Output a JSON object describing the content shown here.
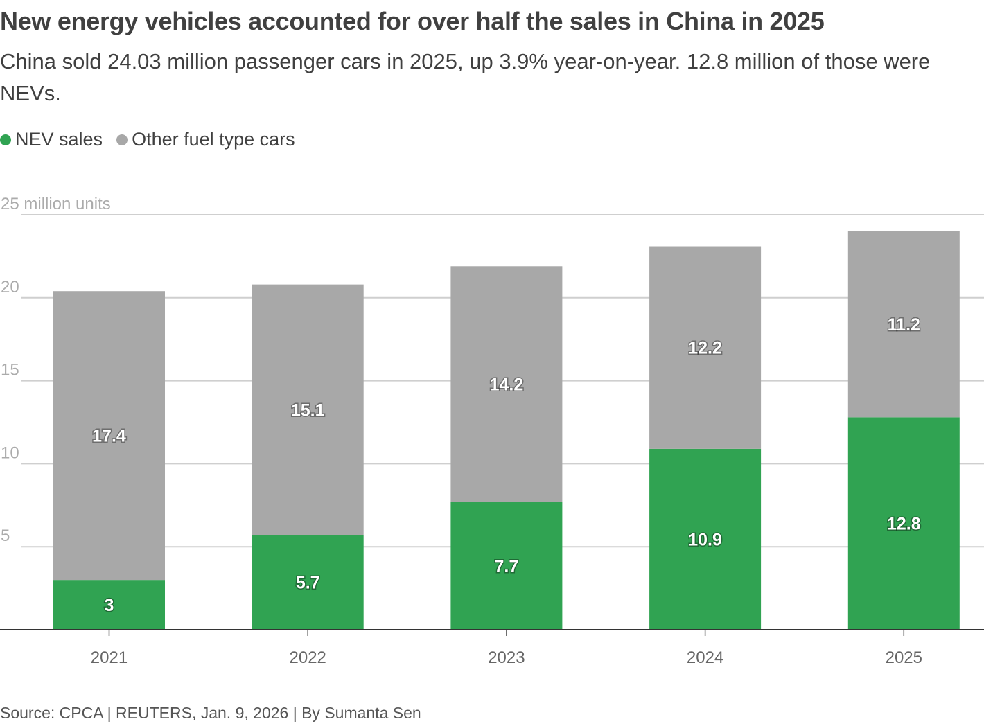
{
  "title": "New energy vehicles accounted for over half the sales in China in 2025",
  "subtitle": "China sold 24.03 million passenger cars in 2025, up 3.9% year-on-year. 12.8 million of those were NEVs.",
  "source": "Source: CPCA | REUTERS, Jan. 9, 2026 | By Sumanta Sen",
  "colors": {
    "nev": "#30a352",
    "other": "#a8a8a8",
    "grid": "#cfcfcf",
    "axis": "#333333"
  },
  "chart_data": {
    "type": "bar",
    "stacked": true,
    "categories": [
      "2021",
      "2022",
      "2023",
      "2024",
      "2025"
    ],
    "series": [
      {
        "name": "NEV sales",
        "values": [
          3,
          5.7,
          7.7,
          10.9,
          12.8
        ],
        "labels": [
          "3",
          "5.7",
          "7.7",
          "10.9",
          "12.8"
        ],
        "color": "#30a352"
      },
      {
        "name": "Other fuel type cars",
        "values": [
          17.4,
          15.1,
          14.2,
          12.2,
          11.2
        ],
        "labels": [
          "17.4",
          "15.1",
          "14.2",
          "12.2",
          "11.2"
        ],
        "color": "#a8a8a8"
      }
    ],
    "yticks": [
      {
        "value": 5,
        "label": "5"
      },
      {
        "value": 10,
        "label": "10"
      },
      {
        "value": 15,
        "label": "15"
      },
      {
        "value": 20,
        "label": "20"
      },
      {
        "value": 25,
        "label": "25 million units"
      }
    ],
    "ylim": [
      0,
      25
    ],
    "grid": true,
    "legend": "top-left"
  }
}
